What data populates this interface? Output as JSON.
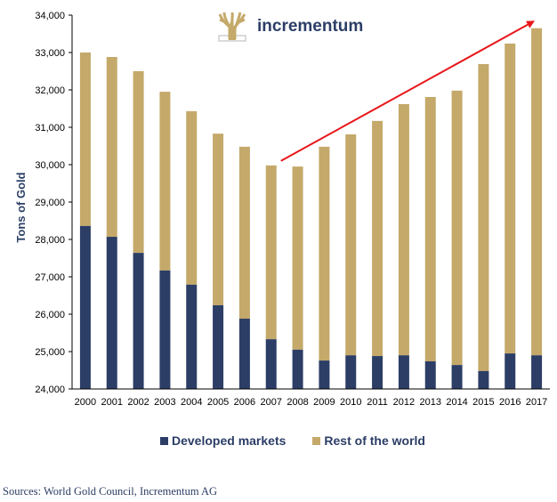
{
  "logo": {
    "text": "incrementum",
    "icon": "tree-icon"
  },
  "source": "Sources: World Gold Council, Incrementum AG",
  "colors": {
    "developed": "#2c3e66",
    "rest": "#c4a96a",
    "arrow": "#e8161b",
    "axis": "#000000"
  },
  "chart_data": {
    "type": "bar",
    "stacked": true,
    "title": "",
    "xlabel": "",
    "ylabel": "Tons of Gold",
    "ylim": [
      24000,
      34000
    ],
    "yticks": [
      24000,
      25000,
      26000,
      27000,
      28000,
      29000,
      30000,
      31000,
      32000,
      33000,
      34000
    ],
    "ytick_labels": [
      "24,000",
      "25,000",
      "26,000",
      "27,000",
      "28,000",
      "29,000",
      "30,000",
      "31,000",
      "32,000",
      "33,000",
      "34,000"
    ],
    "categories": [
      "2000",
      "2001",
      "2002",
      "2003",
      "2004",
      "2005",
      "2006",
      "2007",
      "2008",
      "2009",
      "2010",
      "2011",
      "2012",
      "2013",
      "2014",
      "2015",
      "2016",
      "2017"
    ],
    "series": [
      {
        "name": "Developed markets",
        "values": [
          28360,
          28070,
          27640,
          27170,
          26790,
          26240,
          25880,
          25330,
          25050,
          24760,
          24900,
          24880,
          24900,
          24740,
          24640,
          24480,
          24950,
          24900
        ]
      },
      {
        "name": "Rest of the world",
        "totals": [
          33000,
          32880,
          32500,
          31950,
          31430,
          30830,
          30480,
          29980,
          29950,
          30480,
          30810,
          31170,
          31620,
          31810,
          31980,
          32690,
          33240,
          33650
        ]
      }
    ],
    "legend": {
      "position": "bottom",
      "entries": [
        "Developed markets",
        "Rest of the world"
      ]
    },
    "annotations": [
      {
        "type": "arrow",
        "from": {
          "x": "2007",
          "y": 30100
        },
        "to": {
          "x": "2017",
          "y": 33850
        }
      }
    ],
    "grid": false
  }
}
